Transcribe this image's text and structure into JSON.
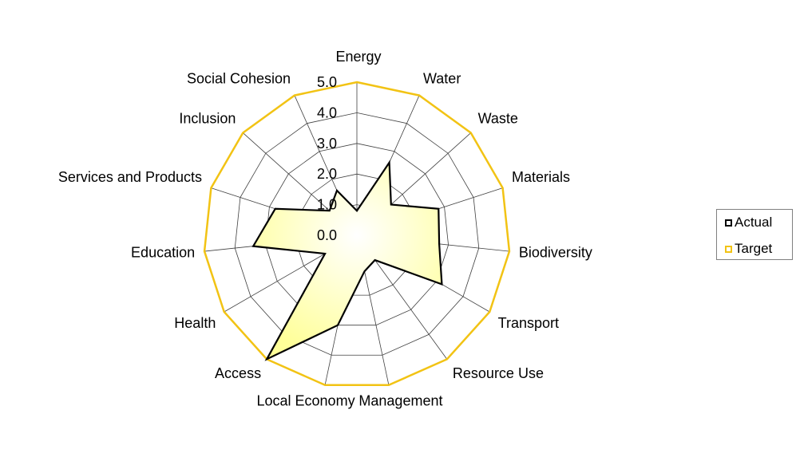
{
  "chart_data": {
    "type": "radar",
    "categories": [
      "Energy",
      "Water",
      "Waste",
      "Materials",
      "Biodiversity",
      "Transport",
      "Resource Use",
      "Management",
      "Local Economy",
      "Access",
      "Health",
      "Education",
      "Services and Products",
      "Inclusion",
      "Social Cohesion"
    ],
    "rlim": [
      0,
      5
    ],
    "ticks": [
      "0.0",
      "1.0",
      "2.0",
      "3.0",
      "4.0",
      "5.0"
    ],
    "series": [
      {
        "name": "Actual",
        "values": [
          0.8,
          2.6,
          1.5,
          2.8,
          2.7,
          3.2,
          1.0,
          1.2,
          3.0,
          5.0,
          1.2,
          3.4,
          2.8,
          1.2,
          1.6
        ],
        "stroke": "#000000",
        "fill": "#ffff99"
      },
      {
        "name": "Target",
        "values": [
          5,
          5,
          5,
          5,
          5,
          5,
          5,
          5,
          5,
          5,
          5,
          5,
          5,
          5,
          5
        ],
        "stroke": "#f2c314"
      }
    ],
    "grid": true,
    "legend_position": "right"
  }
}
